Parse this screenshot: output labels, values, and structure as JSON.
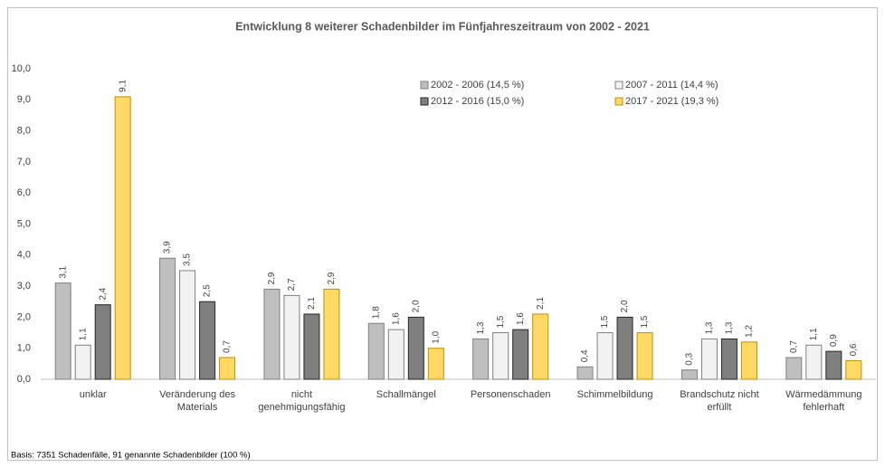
{
  "chart_data": {
    "type": "bar",
    "title": "Entwicklung 8 weiterer Schadenbilder im Fünfjahreszeitraum von 2002 - 2021",
    "categories": [
      "unklar",
      "Veränderung des Materials",
      "nicht genehmigungsfähig",
      "Schallmängel",
      "Personenschaden",
      "Schimmelbildung",
      "Brandschutz nicht erfüllt",
      "Wärmedämmung fehlerhaft"
    ],
    "series": [
      {
        "name": "2002 - 2006 (14,5 %)",
        "color": "#bfbfbf",
        "values": [
          3.1,
          3.9,
          2.9,
          1.8,
          1.3,
          0.4,
          0.3,
          0.7
        ],
        "value_labels": [
          "3,1",
          "3,9",
          "2,9",
          "1,8",
          "1,3",
          "0,4",
          "0,3",
          "0,7"
        ]
      },
      {
        "name": "2007 - 2011 (14,4 %)",
        "color": "#f2f2f2",
        "values": [
          1.1,
          3.5,
          2.7,
          1.6,
          1.5,
          1.5,
          1.3,
          1.1
        ],
        "value_labels": [
          "1,1",
          "3,5",
          "2,7",
          "1,6",
          "1,5",
          "1,5",
          "1,3",
          "1,1"
        ]
      },
      {
        "name": "2012 - 2016 (15,0 %)",
        "color": "#7f7f7f",
        "values": [
          2.4,
          2.5,
          2.1,
          2.0,
          1.6,
          2.0,
          1.3,
          0.9
        ],
        "value_labels": [
          "2,4",
          "2,5",
          "2,1",
          "2,0",
          "1,6",
          "2,0",
          "1,3",
          "0,9"
        ]
      },
      {
        "name": "2017 - 2021 (19,3 %)",
        "color": "#ffd966",
        "values": [
          9.1,
          0.7,
          2.9,
          1.0,
          2.1,
          1.5,
          1.2,
          0.6
        ],
        "value_labels": [
          "9,1",
          "0,7",
          "2,9",
          "1,0",
          "2,1",
          "1,5",
          "1,2",
          "0,6"
        ]
      }
    ],
    "ylim": [
      0,
      10
    ],
    "yticks": [
      {
        "value": 0,
        "label": "0,0"
      },
      {
        "value": 1,
        "label": "1,0"
      },
      {
        "value": 2,
        "label": "2,0"
      },
      {
        "value": 3,
        "label": "3,0"
      },
      {
        "value": 4,
        "label": "4,0"
      },
      {
        "value": 5,
        "label": "5,0"
      },
      {
        "value": 6,
        "label": "6,0"
      },
      {
        "value": 7,
        "label": "7,0"
      },
      {
        "value": 8,
        "label": "8,0"
      },
      {
        "value": 9,
        "label": "9,0"
      },
      {
        "value": 10,
        "label": "10,0"
      }
    ],
    "footnote": "Basis: 7351 Schadenfälle, 91 genannte Schadenbilder (100 %)"
  }
}
